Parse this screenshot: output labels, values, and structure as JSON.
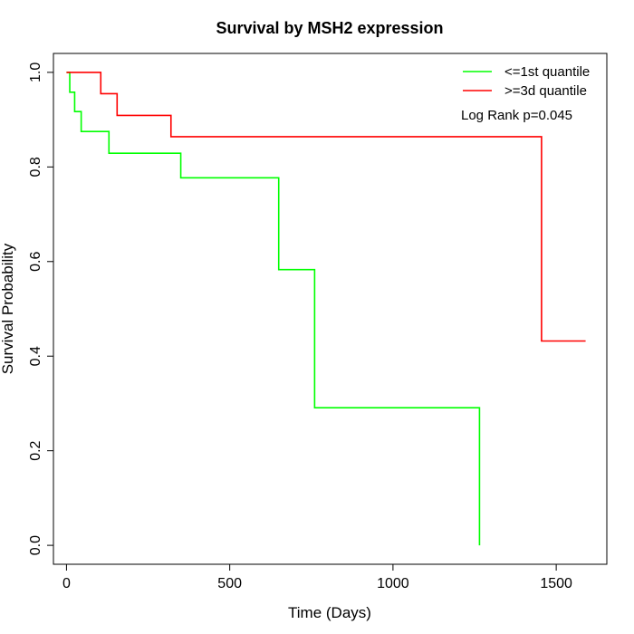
{
  "chart_data": {
    "type": "line",
    "title": "Survival by MSH2 expression",
    "xlabel": "Time (Days)",
    "ylabel": "Survival Probability",
    "xlim": [
      -40,
      1655
    ],
    "ylim": [
      -0.04,
      1.04
    ],
    "x_ticks": [
      0,
      500,
      1000,
      1500
    ],
    "y_ticks": [
      0.0,
      0.2,
      0.4,
      0.6,
      0.8,
      1.0
    ],
    "x_tick_labels": [
      "0",
      "500",
      "1000",
      "1500"
    ],
    "y_tick_labels": [
      "0.0",
      "0.2",
      "0.4",
      "0.6",
      "0.8",
      "1.0"
    ],
    "legend_position": "top-right",
    "grid": false,
    "annotation": "Log Rank p=0.045",
    "series": [
      {
        "name": "<=1st quantile",
        "color": "#00ff00",
        "x": [
          0,
          10,
          25,
          45,
          130,
          350,
          650,
          760,
          1265
        ],
        "y": [
          1.0,
          0.958,
          0.917,
          0.875,
          0.829,
          0.777,
          0.583,
          0.291,
          0.0
        ]
      },
      {
        "name": ">=3d quantile",
        "color": "#ff0000",
        "x": [
          0,
          105,
          155,
          320,
          1455,
          1590
        ],
        "y": [
          1.0,
          0.955,
          0.909,
          0.864,
          0.432,
          0.432
        ]
      }
    ]
  }
}
